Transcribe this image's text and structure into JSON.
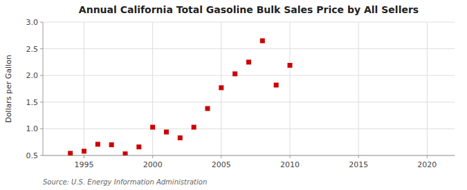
{
  "chart_data": {
    "type": "scatter",
    "title": "Annual California Total Gasoline Bulk Sales Price by All Sellers",
    "ylabel": "Dollars per Gallon",
    "source": "Source: U.S. Energy Information Administration",
    "x": [
      1994,
      1995,
      1996,
      1997,
      1998,
      1999,
      2000,
      2001,
      2002,
      2003,
      2004,
      2005,
      2006,
      2007,
      2008,
      2009,
      2010
    ],
    "values": [
      0.54,
      0.58,
      0.71,
      0.7,
      0.53,
      0.66,
      1.03,
      0.94,
      0.83,
      1.03,
      1.38,
      1.77,
      2.03,
      2.25,
      2.65,
      1.82,
      2.19
    ],
    "color": "#cc0000",
    "marker": "square",
    "xlim": [
      1992,
      2022
    ],
    "ylim": [
      0.5,
      3.0
    ],
    "yticks": [
      0.5,
      {
        "value": 1.0,
        "label": "1.0"
      },
      1.5,
      {
        "value": 2.0,
        "label": "2.0"
      },
      2.5,
      {
        "value": 3.0,
        "label": "3.0"
      }
    ],
    "xticks": [
      1995,
      2000,
      2005,
      2010,
      2015,
      2020
    ],
    "grid": true
  }
}
